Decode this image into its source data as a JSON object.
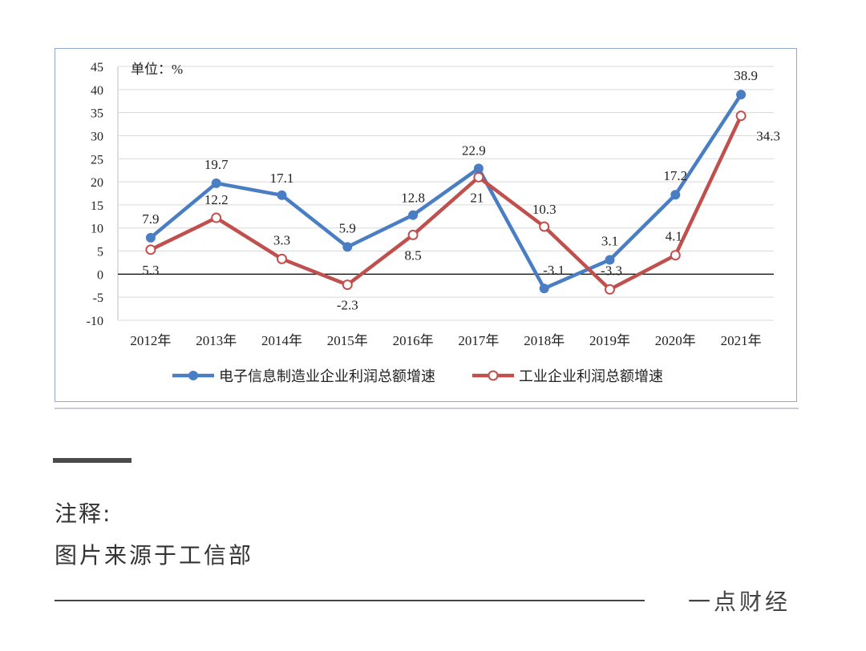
{
  "chart_data": {
    "type": "line",
    "unit_label": "单位：%",
    "categories": [
      "2012年",
      "2013年",
      "2014年",
      "2015年",
      "2016年",
      "2017年",
      "2018年",
      "2019年",
      "2020年",
      "2021年"
    ],
    "ylim": [
      -10,
      45
    ],
    "yticks": [
      45,
      40,
      35,
      30,
      25,
      20,
      15,
      10,
      5,
      0,
      -5,
      -10
    ],
    "grid": true,
    "legend_position": "bottom",
    "series": [
      {
        "name": "电子信息制造业企业利润总额增速",
        "color": "#4a7ec4",
        "marker": "filled-circle",
        "values": [
          7.9,
          19.7,
          17.1,
          5.9,
          12.8,
          22.9,
          -3.1,
          3.1,
          17.2,
          38.9
        ],
        "labels": [
          "7.9",
          "19.7",
          "17.1",
          "5.9",
          "12.8",
          "22.9",
          "-3.1",
          "3.1",
          "17.2",
          "38.9"
        ]
      },
      {
        "name": "工业企业利润总额增速",
        "color": "#c0504d",
        "marker": "hollow-circle",
        "values": [
          5.3,
          12.2,
          3.3,
          -2.3,
          8.5,
          21,
          10.3,
          -3.3,
          4.1,
          34.3
        ],
        "labels": [
          "5.3",
          "12.2",
          "3.3",
          "-2.3",
          "8.5",
          "21",
          "10.3",
          "-3.3",
          "4.1",
          "34.3"
        ]
      }
    ]
  },
  "notes": {
    "title": "注释:",
    "source": "图片来源于工信部"
  },
  "brand": "一点财经"
}
